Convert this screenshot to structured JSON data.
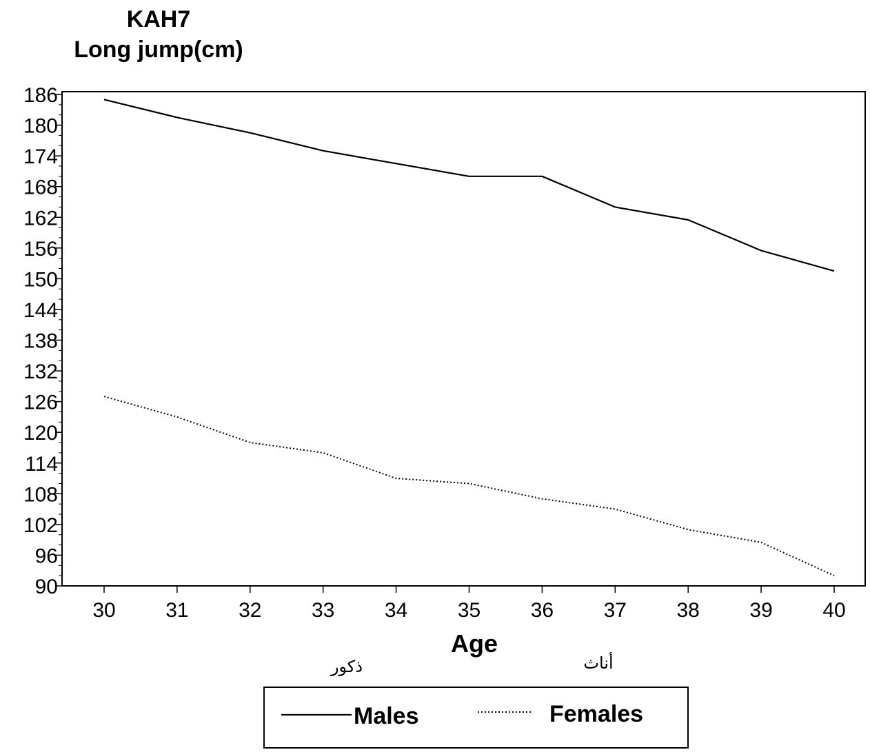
{
  "chart_data": {
    "type": "line",
    "title": "KAH7",
    "subtitle": "Long jump(cm)",
    "xlabel": "Age",
    "ylabel": "",
    "x": [
      30,
      31,
      32,
      33,
      34,
      35,
      36,
      37,
      38,
      39,
      40
    ],
    "xticks": [
      "30",
      "31",
      "32",
      "33",
      "34",
      "35",
      "36",
      "37",
      "38",
      "39",
      "40"
    ],
    "yticks": [
      "186",
      "180",
      "174",
      "168",
      "162",
      "156",
      "150",
      "144",
      "138",
      "132",
      "126",
      "120",
      "114",
      "108",
      "102",
      "96",
      "90"
    ],
    "xlim": [
      29.5,
      40.45
    ],
    "ylim": [
      90,
      186
    ],
    "series": [
      {
        "name": "Males",
        "style": "solid",
        "values": [
          185,
          181.5,
          178.5,
          175,
          172.5,
          170,
          170,
          164,
          161.5,
          155.5,
          151.5
        ]
      },
      {
        "name": "Females",
        "style": "dotted",
        "values": [
          127,
          123,
          118,
          116,
          111,
          110,
          107,
          105,
          101,
          98.5,
          92
        ]
      }
    ],
    "annotations": {
      "males_arabic": "ذكور",
      "females_arabic": "أناث"
    },
    "legend_position": "bottom-center",
    "grid": false
  }
}
